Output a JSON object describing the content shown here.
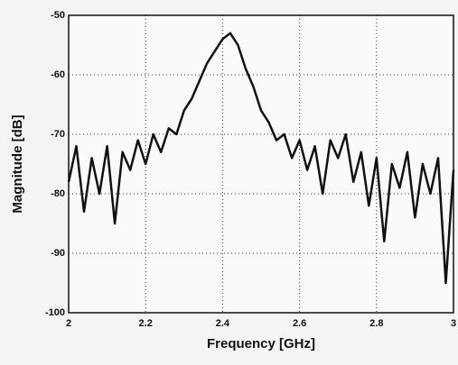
{
  "chart_data": {
    "type": "line",
    "xlabel": "Frequency [GHz]",
    "ylabel": "Magnitude [dB]",
    "x": [
      2.0,
      2.02,
      2.04,
      2.06,
      2.08,
      2.1,
      2.12,
      2.14,
      2.16,
      2.18,
      2.2,
      2.22,
      2.24,
      2.26,
      2.28,
      2.3,
      2.32,
      2.34,
      2.36,
      2.38,
      2.4,
      2.42,
      2.44,
      2.46,
      2.48,
      2.5,
      2.52,
      2.54,
      2.56,
      2.58,
      2.6,
      2.62,
      2.64,
      2.66,
      2.68,
      2.7,
      2.72,
      2.74,
      2.76,
      2.78,
      2.8,
      2.82,
      2.84,
      2.86,
      2.88,
      2.9,
      2.92,
      2.94,
      2.96,
      2.98,
      3.0
    ],
    "values": [
      -78,
      -72,
      -83,
      -74,
      -80,
      -72,
      -85,
      -73,
      -76,
      -71,
      -75,
      -70,
      -73,
      -69,
      -70,
      -66,
      -64,
      -61,
      -58,
      -56,
      -54,
      -53,
      -55,
      -59,
      -62,
      -66,
      -68,
      -71,
      -70,
      -74,
      -71,
      -76,
      -72,
      -80,
      -71,
      -74,
      -70,
      -78,
      -73,
      -82,
      -74,
      -88,
      -75,
      -79,
      -73,
      -84,
      -75,
      -80,
      -74,
      -95,
      -76
    ],
    "color": "#111111",
    "xlim": [
      2,
      3
    ],
    "xticks": [
      2,
      2.2,
      2.4,
      2.6,
      2.8,
      3
    ],
    "ylim": [
      -100,
      -50
    ],
    "yticks": [
      -100,
      -90,
      -80,
      -70,
      -60,
      -50
    ],
    "grid": true
  }
}
